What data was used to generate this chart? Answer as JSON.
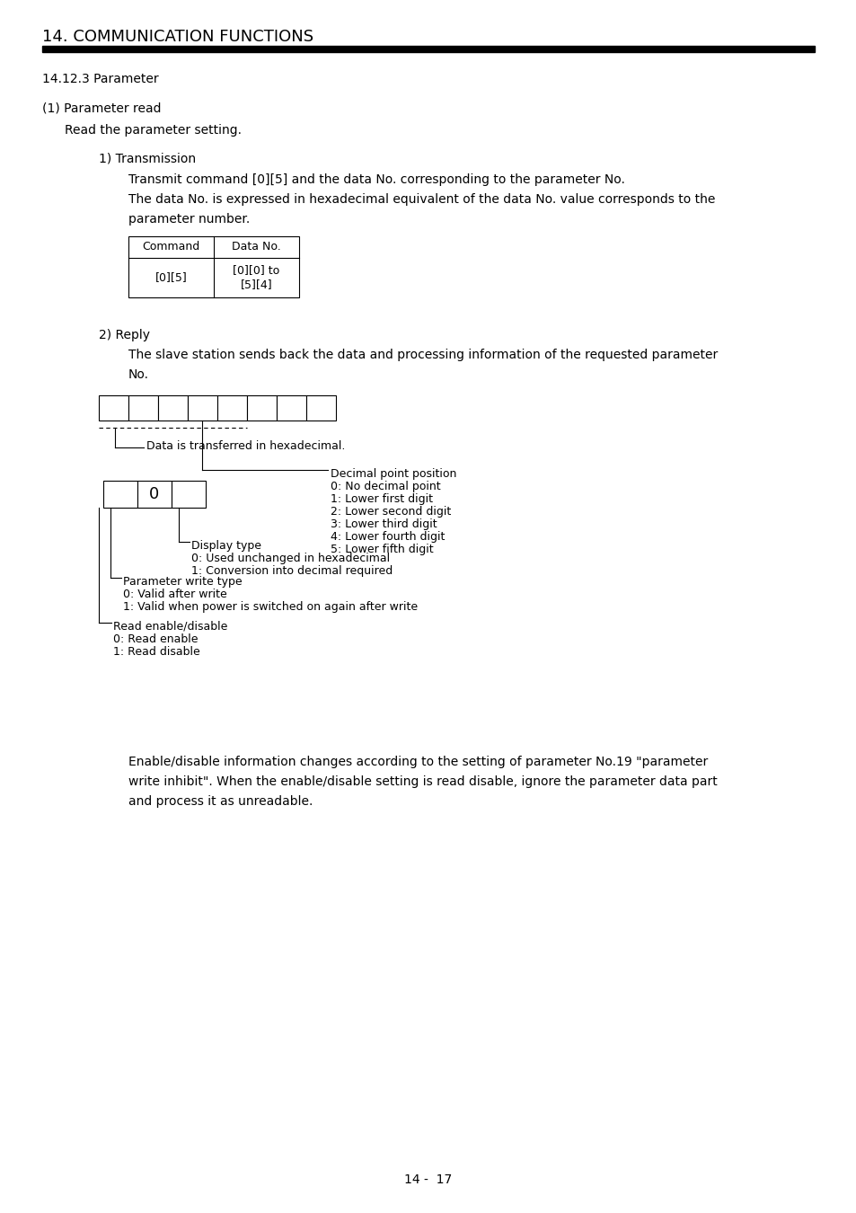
{
  "bg_color": "#ffffff",
  "title": "14. COMMUNICATION FUNCTIONS",
  "page_number": "14 -  17",
  "section": "14.12.3 Parameter",
  "subsection1": "(1) Parameter read",
  "subsection1_text": "Read the parameter setting.",
  "sub1_1": "1) Transmission",
  "sub1_1_text1": "Transmit command [0][5] and the data No. corresponding to the parameter No.",
  "sub1_1_text2": "The data No. is expressed in hexadecimal equivalent of the data No. value corresponds to the",
  "sub1_1_text2b": "parameter number.",
  "table_headers": [
    "Command",
    "Data No."
  ],
  "table_row1": "[0][5]",
  "table_row2a": "[0][0] to",
  "table_row2b": "[5][4]",
  "sub1_2": "2) Reply",
  "sub1_2_text1": "The slave station sends back the data and processing information of the requested parameter",
  "sub1_2_text1b": "No.",
  "diagram_label_hex": "Data is transferred in hexadecimal.",
  "diag_decimal_title": "Decimal point position",
  "diag_decimal_lines": [
    "0: No decimal point",
    "1: Lower first digit",
    "2: Lower second digit",
    "3: Lower third digit",
    "4: Lower fourth digit",
    "5: Lower fifth digit"
  ],
  "diag_display_title": "Display type",
  "diag_display_lines": [
    "0: Used unchanged in hexadecimal",
    "1: Conversion into decimal required"
  ],
  "diag_write_title": "Parameter write type",
  "diag_write_lines": [
    "0: Valid after write",
    "1: Valid when power is switched on again after write"
  ],
  "diag_read_title": "Read enable/disable",
  "diag_read_lines": [
    "0: Read enable",
    "1: Read disable"
  ],
  "enable_disable_text1": "Enable/disable information changes according to the setting of parameter No.19 \"parameter",
  "enable_disable_text2": "write inhibit\". When the enable/disable setting is read disable, ignore the parameter data part",
  "enable_disable_text3": "and process it as unreadable."
}
